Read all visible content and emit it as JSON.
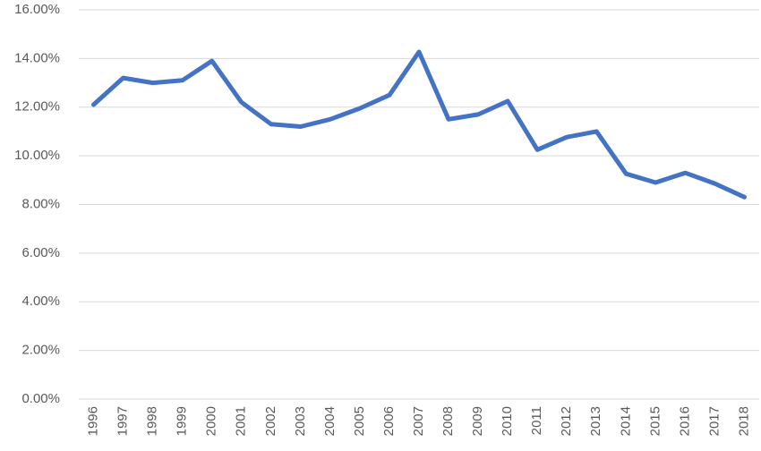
{
  "chart_data": {
    "type": "line",
    "categories": [
      "1996",
      "1997",
      "1998",
      "1999",
      "2000",
      "2001",
      "2002",
      "2003",
      "2004",
      "2005",
      "2006",
      "2007",
      "2008",
      "2009",
      "2010",
      "2011",
      "2012",
      "2013",
      "2014",
      "2015",
      "2016",
      "2017",
      "2018"
    ],
    "values": [
      12.1,
      13.2,
      13.0,
      13.1,
      13.9,
      12.2,
      11.3,
      11.2,
      11.5,
      11.95,
      12.5,
      14.27,
      11.5,
      11.7,
      12.25,
      10.25,
      10.77,
      11.0,
      9.26,
      8.9,
      9.3,
      8.86,
      8.3
    ],
    "color": "#4472c4",
    "ylim": [
      0,
      16
    ],
    "yticks": [
      {
        "value": 0,
        "label": "0.00%"
      },
      {
        "value": 2,
        "label": "2.00%"
      },
      {
        "value": 4,
        "label": "4.00%"
      },
      {
        "value": 6,
        "label": "6.00%"
      },
      {
        "value": 8,
        "label": "8.00%"
      },
      {
        "value": 10,
        "label": "10.00%"
      },
      {
        "value": 12,
        "label": "12.00%"
      },
      {
        "value": 14,
        "label": "14.00%"
      },
      {
        "value": 16,
        "label": "16.00%"
      }
    ],
    "grid": true
  }
}
